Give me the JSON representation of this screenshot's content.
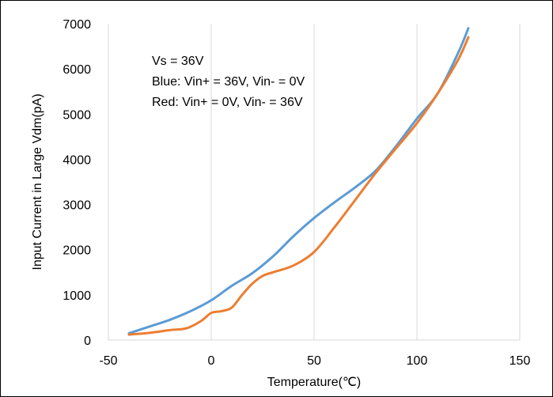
{
  "chart_data": {
    "type": "line",
    "xlabel": "Temperature(℃)",
    "ylabel": "Input Current in Large Vdm(pA)",
    "xlim": [
      -50,
      150
    ],
    "ylim": [
      0,
      7000
    ],
    "xticks": [
      -50,
      0,
      50,
      100,
      150
    ],
    "yticks": [
      0,
      1000,
      2000,
      3000,
      4000,
      5000,
      6000,
      7000
    ],
    "grid": "vertical",
    "annotations": [
      "Vs = 36V",
      "Blue: Vin+ = 36V, Vin- = 0V",
      "Red: Vin+ = 0V, Vin- = 36V"
    ],
    "series": [
      {
        "color": "#5b9bd5",
        "x": [
          -40,
          -30,
          -20,
          -10,
          0,
          10,
          20,
          30,
          40,
          50,
          60,
          70,
          80,
          90,
          100,
          110,
          120,
          125
        ],
        "y": [
          150,
          300,
          450,
          640,
          880,
          1200,
          1480,
          1850,
          2300,
          2700,
          3050,
          3380,
          3750,
          4300,
          4900,
          5450,
          6350,
          6900
        ]
      },
      {
        "color": "#ed7d31",
        "x": [
          -40,
          -30,
          -20,
          -12,
          -5,
          0,
          5,
          10,
          15,
          20,
          25,
          30,
          40,
          50,
          60,
          70,
          80,
          90,
          100,
          110,
          120,
          125
        ],
        "y": [
          120,
          160,
          220,
          260,
          420,
          600,
          640,
          720,
          1000,
          1250,
          1420,
          1500,
          1650,
          1950,
          2500,
          3100,
          3700,
          4250,
          4800,
          5450,
          6200,
          6700
        ]
      }
    ]
  }
}
